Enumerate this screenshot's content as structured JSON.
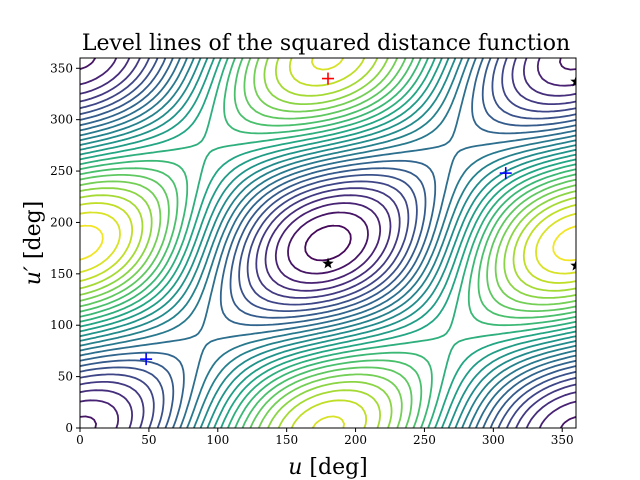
{
  "chart_data": {
    "type": "contour",
    "title": "Level lines of the squared distance function",
    "xlabel_var": "u",
    "xlabel_unit": "[deg]",
    "ylabel_var": "u′",
    "ylabel_unit": "[deg]",
    "xlim": [
      0,
      360
    ],
    "ylim": [
      0,
      360
    ],
    "xticks": [
      0,
      50,
      100,
      150,
      200,
      250,
      300,
      350
    ],
    "yticks": [
      0,
      50,
      100,
      150,
      200,
      250,
      300,
      350
    ],
    "xtick_labels": [
      "0",
      "50",
      "100",
      "150",
      "200",
      "250",
      "300",
      "350"
    ],
    "ytick_labels": [
      "0",
      "50",
      "100",
      "150",
      "200",
      "250",
      "300",
      "350"
    ],
    "colormap": "viridis",
    "grid": false,
    "markers": [
      {
        "kind": "plus",
        "color": "#ff0000",
        "x": 180,
        "y": 340
      },
      {
        "kind": "plus",
        "color": "#0000ff",
        "x": 48,
        "y": 67
      },
      {
        "kind": "plus",
        "color": "#0000ff",
        "x": 309,
        "y": 248
      },
      {
        "kind": "star",
        "color": "#000000",
        "x": 180,
        "y": 160
      },
      {
        "kind": "star",
        "color": "#000000",
        "x": 360,
        "y": 337
      },
      {
        "kind": "star",
        "color": "#000000",
        "x": 360,
        "y": 158
      }
    ]
  }
}
